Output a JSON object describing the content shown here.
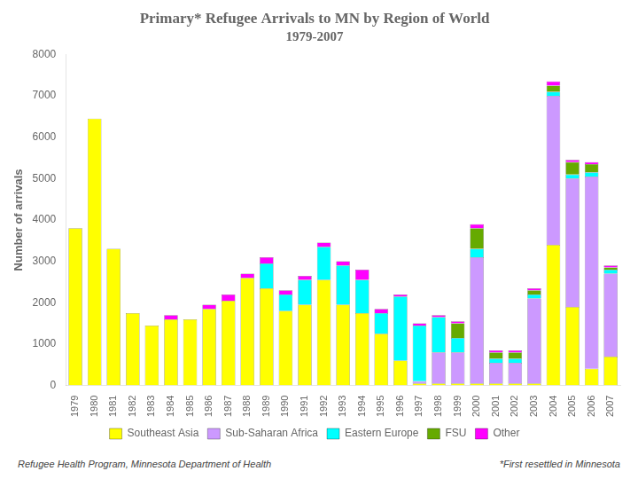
{
  "chart_data": {
    "type": "bar",
    "title": "Primary* Refugee Arrivals to MN by Region of World",
    "subtitle": "1979-2007",
    "y_label": "Number of arrivals",
    "annotations": [
      "Refugee Health Program, Minnesota Department of Health",
      "*First resettled in Minnesota"
    ],
    "categories": [
      "1979",
      "1980",
      "1981",
      "1982",
      "1983",
      "1984",
      "1985",
      "1986",
      "1987",
      "1988",
      "1989",
      "1990",
      "1991",
      "1992",
      "1993",
      "1994",
      "1995",
      "1996",
      "1997",
      "1998",
      "1999",
      "2000",
      "2001",
      "2002",
      "2003",
      "2004",
      "2005",
      "2006",
      "2007"
    ],
    "series": [
      {
        "name": "Southeast Asia",
        "color": "#FFFF00",
        "values": [
          3800,
          6450,
          3300,
          1750,
          1450,
          1600,
          1600,
          1850,
          2050,
          2600,
          2350,
          1800,
          1950,
          2550,
          1950,
          1750,
          1250,
          600,
          50,
          50,
          50,
          50,
          50,
          50,
          50,
          3400,
          1900,
          400,
          700
        ]
      },
      {
        "name": "Sub-Saharan Africa",
        "color": "#CC99FF",
        "values": [
          0,
          0,
          0,
          0,
          0,
          0,
          0,
          0,
          0,
          0,
          0,
          0,
          0,
          0,
          0,
          0,
          0,
          0,
          50,
          750,
          750,
          3050,
          500,
          500,
          2050,
          3600,
          3100,
          4650,
          2000
        ]
      },
      {
        "name": "Eastern Europe",
        "color": "#00FFFF",
        "values": [
          0,
          0,
          0,
          0,
          0,
          0,
          0,
          0,
          0,
          0,
          600,
          400,
          600,
          800,
          950,
          800,
          500,
          1550,
          1350,
          850,
          350,
          200,
          100,
          100,
          100,
          100,
          100,
          100,
          100
        ]
      },
      {
        "name": "FSU",
        "color": "#66AA00",
        "values": [
          0,
          0,
          0,
          0,
          0,
          0,
          0,
          0,
          0,
          0,
          0,
          0,
          0,
          0,
          0,
          0,
          0,
          0,
          0,
          0,
          350,
          500,
          150,
          150,
          100,
          150,
          300,
          200,
          50
        ]
      },
      {
        "name": "Other",
        "color": "#FF00FF",
        "values": [
          0,
          0,
          0,
          0,
          0,
          100,
          0,
          100,
          150,
          100,
          150,
          100,
          100,
          100,
          100,
          250,
          100,
          50,
          50,
          50,
          50,
          100,
          50,
          50,
          50,
          100,
          50,
          50,
          50
        ]
      }
    ],
    "ylim": [
      0,
      8000
    ],
    "yticks": [
      0,
      1000,
      2000,
      3000,
      4000,
      5000,
      6000,
      7000,
      8000
    ],
    "stacked": true,
    "grid": false,
    "legend": "bottom"
  }
}
